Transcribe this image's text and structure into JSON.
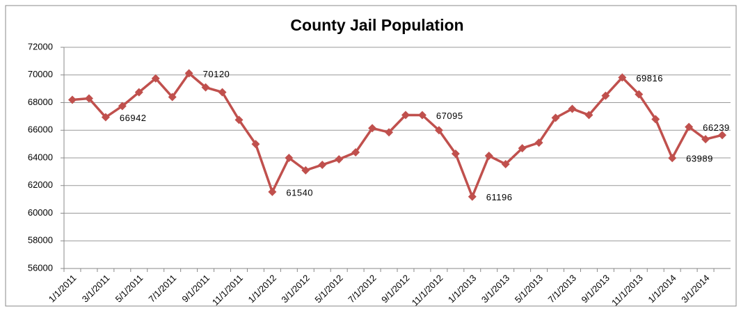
{
  "chart_data": {
    "type": "line",
    "title": "County Jail Population",
    "categories": [
      "1/1/2011",
      null,
      "3/1/2011",
      null,
      "5/1/2011",
      null,
      "7/1/2011",
      null,
      "9/1/2011",
      null,
      "11/1/2011",
      null,
      "1/1/2012",
      null,
      "3/1/2012",
      null,
      "5/1/2012",
      null,
      "7/1/2012",
      null,
      "9/1/2012",
      null,
      "11/1/2012",
      null,
      "1/1/2013",
      null,
      "3/1/2013",
      null,
      "5/1/2013",
      null,
      "7/1/2013",
      null,
      "9/1/2013",
      null,
      "11/1/2013",
      null,
      "1/1/2014",
      null,
      "3/1/2014",
      null
    ],
    "series": [
      {
        "name": "County Jail Population",
        "color": "#c0504d",
        "values": [
          68200,
          68300,
          66942,
          67750,
          68750,
          69750,
          68400,
          70120,
          69100,
          68750,
          66750,
          65000,
          61540,
          64000,
          63100,
          63500,
          63900,
          64400,
          66150,
          65850,
          67100,
          67095,
          66000,
          64300,
          61196,
          64150,
          63550,
          64700,
          65100,
          66900,
          67550,
          67100,
          68500,
          69816,
          68600,
          66800,
          63989,
          66239,
          65350,
          65650
        ],
        "value_labels": [
          null,
          null,
          "66942",
          null,
          null,
          null,
          null,
          "70120",
          null,
          null,
          null,
          null,
          "61540",
          null,
          null,
          null,
          null,
          null,
          null,
          null,
          null,
          "67095",
          null,
          null,
          "61196",
          null,
          null,
          null,
          null,
          null,
          null,
          null,
          null,
          "69816",
          null,
          null,
          "63989",
          "66239",
          null,
          null
        ]
      }
    ],
    "ylim": [
      56000,
      72000
    ],
    "yticks": [
      56000,
      58000,
      60000,
      62000,
      64000,
      66000,
      68000,
      70000,
      72000
    ],
    "grid": true
  }
}
